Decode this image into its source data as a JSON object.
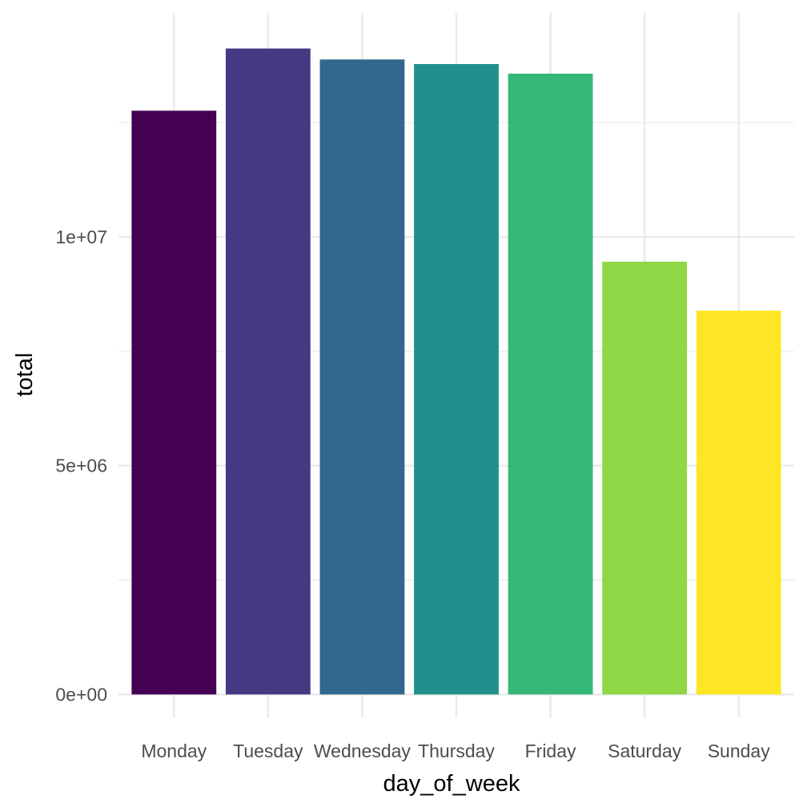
{
  "chart_data": {
    "type": "bar",
    "title": "",
    "xlabel": "day_of_week",
    "ylabel": "total",
    "categories": [
      "Monday",
      "Tuesday",
      "Wednesday",
      "Thursday",
      "Friday",
      "Saturday",
      "Sunday"
    ],
    "values": [
      12760000,
      14120000,
      13880000,
      13780000,
      13570000,
      9460000,
      8390000
    ],
    "colors": [
      "#440154",
      "#443983",
      "#31688E",
      "#21908C",
      "#35B779",
      "#8FD744",
      "#FDE725"
    ],
    "ylim": [
      -500000,
      14900000
    ],
    "y_ticks": [
      {
        "value": 0,
        "label": "0e+00"
      },
      {
        "value": 5000000,
        "label": "5e+06"
      },
      {
        "value": 10000000,
        "label": "1e+07"
      }
    ],
    "y_minor_ticks": [
      2500000,
      7500000,
      12500000
    ],
    "grid": true,
    "legend": "none",
    "theme": "minimal"
  }
}
